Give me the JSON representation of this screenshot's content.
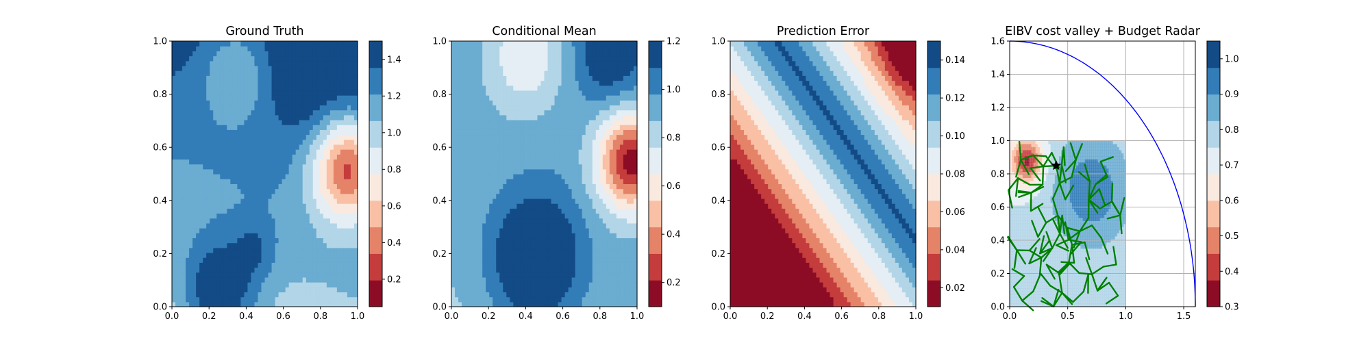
{
  "figure": {
    "background": "#ffffff"
  },
  "chart_data": [
    {
      "type": "heatmap",
      "title": "Ground Truth",
      "xlabel": "",
      "ylabel": "",
      "xlim": [
        0,
        1.0
      ],
      "ylim": [
        0,
        1.0
      ],
      "xticks": [
        "0.0",
        "0.2",
        "0.4",
        "0.6",
        "0.8",
        "1.0"
      ],
      "yticks": [
        "0.0",
        "0.2",
        "0.4",
        "0.6",
        "0.8",
        "1.0"
      ],
      "colormap": "RdBu",
      "colorbar": {
        "range": [
          0.05,
          1.5
        ],
        "ticks": [
          0.2,
          0.4,
          0.6,
          0.8,
          1.0,
          1.2,
          1.4
        ],
        "tick_labels": [
          "0.2",
          "0.4",
          "0.6",
          "0.8",
          "1.0",
          "1.2",
          "1.4"
        ],
        "levels": 10
      },
      "field": {
        "base": 0.9,
        "gradient": [
          0.15,
          0.55
        ],
        "bumps": [
          {
            "x": 0.95,
            "y": 0.52,
            "amp": -1.0,
            "sigma": 0.14
          },
          {
            "x": 0.35,
            "y": 0.9,
            "amp": -0.35,
            "sigma": 0.15
          },
          {
            "x": 0.25,
            "y": 0.05,
            "amp": 0.55,
            "sigma": 0.15
          },
          {
            "x": 0.45,
            "y": 0.22,
            "amp": 0.2,
            "sigma": 0.08
          },
          {
            "x": 0.7,
            "y": 0.85,
            "amp": 0.15,
            "sigma": 0.12
          }
        ]
      }
    },
    {
      "type": "heatmap",
      "title": "Conditional Mean",
      "xlabel": "",
      "ylabel": "",
      "xlim": [
        0,
        1.0
      ],
      "ylim": [
        0,
        1.0
      ],
      "xticks": [
        "0.0",
        "0.2",
        "0.4",
        "0.6",
        "0.8",
        "1.0"
      ],
      "yticks": [
        "0.0",
        "0.2",
        "0.4",
        "0.6",
        "0.8",
        "1.0"
      ],
      "colormap": "RdBu",
      "colorbar": {
        "range": [
          0.1,
          1.2
        ],
        "ticks": [
          0.2,
          0.4,
          0.6,
          0.8,
          1.0,
          1.2
        ],
        "tick_labels": [
          "0.2",
          "0.4",
          "0.6",
          "0.8",
          "1.0",
          "1.2"
        ],
        "levels": 10
      },
      "field": {
        "base": 0.85,
        "gradient": [
          0.05,
          0.1
        ],
        "bumps": [
          {
            "x": 0.45,
            "y": 0.18,
            "amp": 0.45,
            "sigma": 0.17
          },
          {
            "x": 0.97,
            "y": 0.55,
            "amp": -0.8,
            "sigma": 0.13
          },
          {
            "x": 0.4,
            "y": 0.95,
            "amp": -0.3,
            "sigma": 0.15
          },
          {
            "x": 0.85,
            "y": 0.95,
            "amp": 0.25,
            "sigma": 0.12
          }
        ]
      }
    },
    {
      "type": "heatmap",
      "title": "Prediction Error",
      "xlabel": "",
      "ylabel": "",
      "xlim": [
        0,
        1.0
      ],
      "ylim": [
        0,
        1.0
      ],
      "xticks": [
        "0.0",
        "0.2",
        "0.4",
        "0.6",
        "0.8",
        "1.0"
      ],
      "yticks": [
        "0.0",
        "0.2",
        "0.4",
        "0.6",
        "0.8",
        "1.0"
      ],
      "colormap": "RdBu",
      "colorbar": {
        "range": [
          0.01,
          0.15
        ],
        "ticks": [
          0.02,
          0.04,
          0.06,
          0.08,
          0.1,
          0.12,
          0.14
        ],
        "tick_labels": [
          "0.02",
          "0.04",
          "0.06",
          "0.08",
          "0.10",
          "0.12",
          "0.14"
        ],
        "levels": 10
      },
      "field": {
        "base": 0.03,
        "gradient": [
          -0.06,
          -0.06
        ],
        "bumps": [
          {
            "x": 0.0,
            "y": 0.0,
            "amp": 0.12,
            "sigma": 0.28
          },
          {
            "x": 0.0,
            "y": 0.95,
            "amp": 0.06,
            "sigma": 0.1
          }
        ]
      }
    },
    {
      "type": "heatmap",
      "title": "EIBV cost valley + Budget Radar",
      "xlabel": "",
      "ylabel": "",
      "xlim": [
        0,
        1.6
      ],
      "ylim": [
        0,
        1.6
      ],
      "xticks": [
        "0.0",
        "0.5",
        "1.0",
        "1.5"
      ],
      "yticks": [
        "0.0",
        "0.2",
        "0.4",
        "0.6",
        "0.8",
        "1.0",
        "1.2",
        "1.4",
        "1.6"
      ],
      "colormap": "RdBu",
      "colorbar": {
        "range": [
          0.3,
          1.05
        ],
        "ticks": [
          0.3,
          0.4,
          0.5,
          0.6,
          0.7,
          0.8,
          0.9,
          1.0
        ],
        "tick_labels": [
          "0.3",
          "0.4",
          "0.5",
          "0.6",
          "0.7",
          "0.8",
          "0.9",
          "1.0"
        ],
        "levels": 10
      },
      "grid": true,
      "cost_field_extent": [
        0,
        1.0,
        0,
        1.0
      ],
      "budget_radar": {
        "center": [
          0,
          0
        ],
        "radius": 1.6,
        "color": "#0000ff"
      },
      "current_location": [
        0.4,
        0.85
      ],
      "tree_color": "#008000",
      "marker_color": "#000000"
    }
  ]
}
